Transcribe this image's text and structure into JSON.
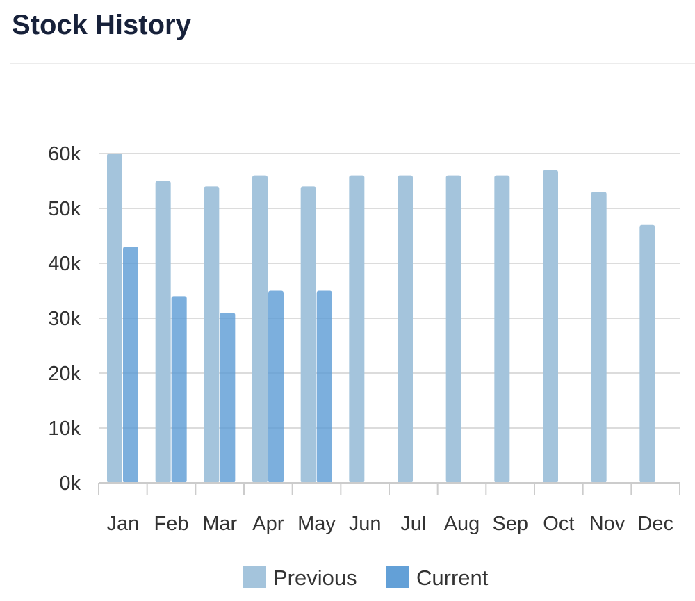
{
  "page": {
    "title": "Stock History"
  },
  "chart_data": {
    "type": "bar",
    "title": "Stock History",
    "xlabel": "",
    "ylabel": "",
    "categories": [
      "Jan",
      "Feb",
      "Mar",
      "Apr",
      "May",
      "Jun",
      "Jul",
      "Aug",
      "Sep",
      "Oct",
      "Nov",
      "Dec"
    ],
    "series": [
      {
        "name": "Previous",
        "color": "#a4c4dc",
        "values": [
          60000,
          55000,
          54000,
          56000,
          54000,
          56000,
          56000,
          56000,
          56000,
          57000,
          53000,
          47000
        ]
      },
      {
        "name": "Current",
        "color": "#5b9bd5",
        "values": [
          43000,
          34000,
          31000,
          35000,
          35000,
          null,
          null,
          null,
          null,
          null,
          null,
          null
        ]
      }
    ],
    "ylim": [
      0,
      60000
    ],
    "yticks": [
      0,
      10000,
      20000,
      30000,
      40000,
      50000,
      60000
    ],
    "ytick_labels": [
      "0k",
      "10k",
      "20k",
      "30k",
      "40k",
      "50k",
      "60k"
    ],
    "grid": true,
    "legend": "bottom-center"
  }
}
